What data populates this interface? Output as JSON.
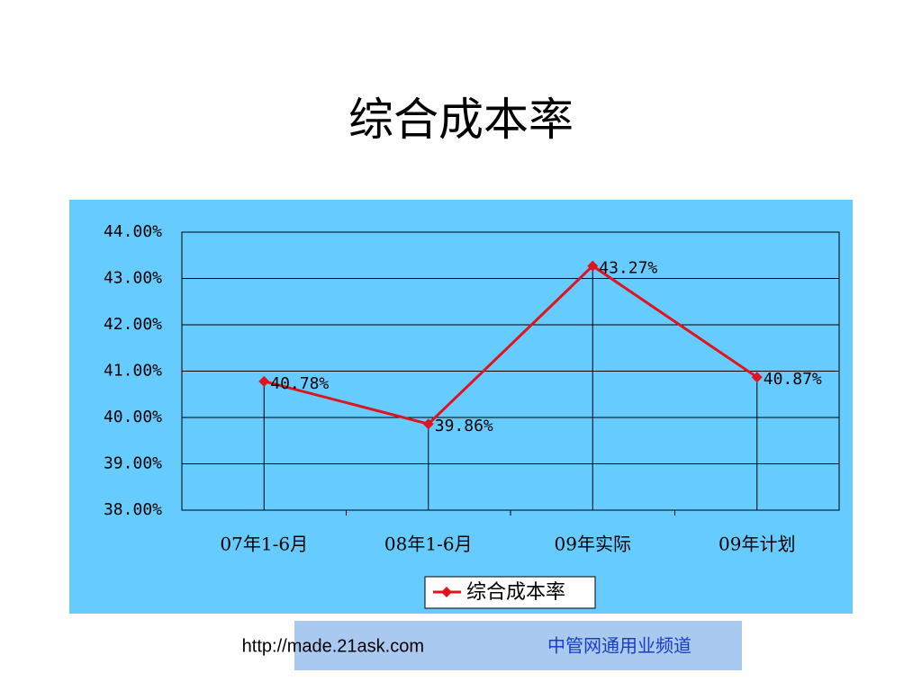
{
  "chart_data": {
    "type": "line",
    "title": "综合成本率",
    "categories": [
      "07年1-6月",
      "08年1-6月",
      "09年实际",
      "09年计划"
    ],
    "series": [
      {
        "name": "综合成本率",
        "color": "#e0141e",
        "values": [
          40.78,
          39.86,
          43.27,
          40.87
        ],
        "value_labels": [
          "40.78%",
          "39.86%",
          "43.27%",
          "40.87%"
        ]
      }
    ],
    "ylim": [
      38,
      44
    ],
    "yticks": [
      {
        "value": 38,
        "label": "38.00%"
      },
      {
        "value": 39,
        "label": "39.00%"
      },
      {
        "value": 40,
        "label": "40.00%"
      },
      {
        "value": 41,
        "label": "41.00%"
      },
      {
        "value": 42,
        "label": "42.00%"
      },
      {
        "value": 43,
        "label": "43.00%"
      },
      {
        "value": 44,
        "label": "44.00%"
      }
    ],
    "grid": true,
    "drop_lines": true,
    "legend": "bottom"
  },
  "footer": {
    "url": "http://made.21ask.com",
    "text": "中管网通用业频道"
  }
}
